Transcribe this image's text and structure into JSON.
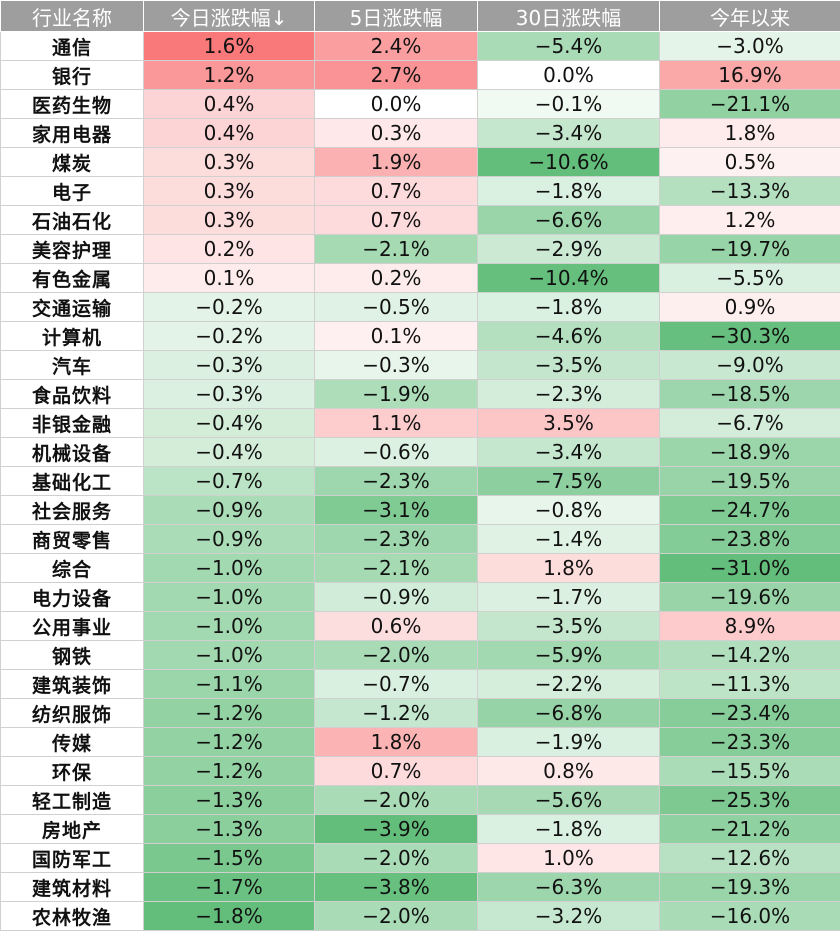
{
  "chart_data": {
    "type": "table",
    "headers": [
      "行业名称",
      "今日涨跌幅↓",
      "5日涨跌幅",
      "30日涨跌幅",
      "今年以来"
    ],
    "rows": [
      {
        "name": "通信",
        "values": [
          "1.6%",
          "2.4%",
          "−5.4%",
          "−3.0%"
        ]
      },
      {
        "name": "银行",
        "values": [
          "1.2%",
          "2.7%",
          "0.0%",
          "16.9%"
        ]
      },
      {
        "name": "医药生物",
        "values": [
          "0.4%",
          "0.0%",
          "−0.1%",
          "−21.1%"
        ]
      },
      {
        "name": "家用电器",
        "values": [
          "0.4%",
          "0.3%",
          "−3.4%",
          "1.8%"
        ]
      },
      {
        "name": "煤炭",
        "values": [
          "0.3%",
          "1.9%",
          "−10.6%",
          "0.5%"
        ]
      },
      {
        "name": "电子",
        "values": [
          "0.3%",
          "0.7%",
          "−1.8%",
          "−13.3%"
        ]
      },
      {
        "name": "石油石化",
        "values": [
          "0.3%",
          "0.7%",
          "−6.6%",
          "1.2%"
        ]
      },
      {
        "name": "美容护理",
        "values": [
          "0.2%",
          "−2.1%",
          "−2.9%",
          "−19.7%"
        ]
      },
      {
        "name": "有色金属",
        "values": [
          "0.1%",
          "0.2%",
          "−10.4%",
          "−5.5%"
        ]
      },
      {
        "name": "交通运输",
        "values": [
          "−0.2%",
          "−0.5%",
          "−1.8%",
          "0.9%"
        ]
      },
      {
        "name": "计算机",
        "values": [
          "−0.2%",
          "0.1%",
          "−4.6%",
          "−30.3%"
        ]
      },
      {
        "name": "汽车",
        "values": [
          "−0.3%",
          "−0.3%",
          "−3.5%",
          "−9.0%"
        ]
      },
      {
        "name": "食品饮料",
        "values": [
          "−0.3%",
          "−1.9%",
          "−2.3%",
          "−18.5%"
        ]
      },
      {
        "name": "非银金融",
        "values": [
          "−0.4%",
          "1.1%",
          "3.5%",
          "−6.7%"
        ]
      },
      {
        "name": "机械设备",
        "values": [
          "−0.4%",
          "−0.6%",
          "−3.4%",
          "−18.9%"
        ]
      },
      {
        "name": "基础化工",
        "values": [
          "−0.7%",
          "−2.3%",
          "−7.5%",
          "−19.5%"
        ]
      },
      {
        "name": "社会服务",
        "values": [
          "−0.9%",
          "−3.1%",
          "−0.8%",
          "−24.7%"
        ]
      },
      {
        "name": "商贸零售",
        "values": [
          "−0.9%",
          "−2.3%",
          "−1.4%",
          "−23.8%"
        ]
      },
      {
        "name": "综合",
        "values": [
          "−1.0%",
          "−2.1%",
          "1.8%",
          "−31.0%"
        ]
      },
      {
        "name": "电力设备",
        "values": [
          "−1.0%",
          "−0.9%",
          "−1.7%",
          "−19.6%"
        ]
      },
      {
        "name": "公用事业",
        "values": [
          "−1.0%",
          "0.6%",
          "−3.5%",
          "8.9%"
        ]
      },
      {
        "name": "钢铁",
        "values": [
          "−1.0%",
          "−2.0%",
          "−5.9%",
          "−14.2%"
        ]
      },
      {
        "name": "建筑装饰",
        "values": [
          "−1.1%",
          "−0.7%",
          "−2.2%",
          "−11.3%"
        ]
      },
      {
        "name": "纺织服饰",
        "values": [
          "−1.2%",
          "−1.2%",
          "−6.8%",
          "−23.4%"
        ]
      },
      {
        "name": "传媒",
        "values": [
          "−1.2%",
          "1.8%",
          "−1.9%",
          "−23.3%"
        ]
      },
      {
        "name": "环保",
        "values": [
          "−1.2%",
          "0.7%",
          "0.8%",
          "−15.5%"
        ]
      },
      {
        "name": "轻工制造",
        "values": [
          "−1.3%",
          "−2.0%",
          "−5.6%",
          "−25.3%"
        ]
      },
      {
        "name": "房地产",
        "values": [
          "−1.3%",
          "−3.9%",
          "−1.8%",
          "−21.2%"
        ]
      },
      {
        "name": "国防军工",
        "values": [
          "−1.5%",
          "−2.0%",
          "1.0%",
          "−12.6%"
        ]
      },
      {
        "name": "建筑材料",
        "values": [
          "−1.7%",
          "−3.8%",
          "−6.3%",
          "−19.3%"
        ]
      },
      {
        "name": "农林牧渔",
        "values": [
          "−1.8%",
          "−2.0%",
          "−3.2%",
          "−16.0%"
        ]
      }
    ],
    "colors": {
      "positive": "#f8696b",
      "negative": "#63be7b",
      "neutral": "#ffffff",
      "header_bg": "#9e9e9e"
    }
  }
}
